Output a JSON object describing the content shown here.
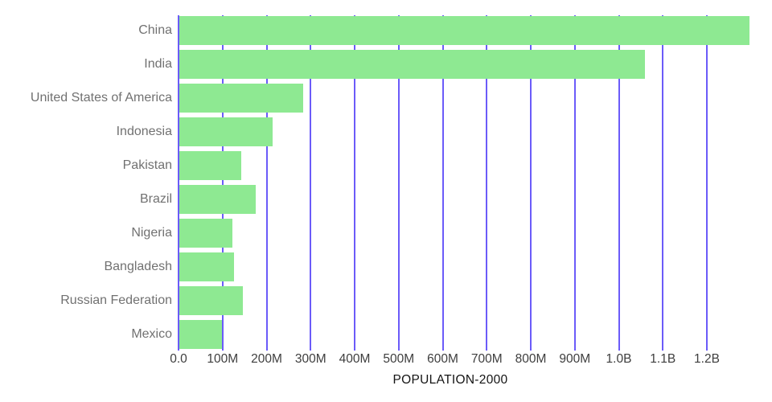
{
  "chart_data": {
    "type": "bar",
    "orientation": "horizontal",
    "title": "",
    "xlabel": "POPULATION-2000",
    "ylabel": "",
    "unit": "persons (millions shown as M, billions as B)",
    "categories": [
      "China",
      "India",
      "United States of America",
      "Indonesia",
      "Pakistan",
      "Brazil",
      "Nigeria",
      "Bangladesh",
      "Russian Federation",
      "Mexico"
    ],
    "values_millions": [
      1295,
      1057,
      281,
      211,
      141,
      173,
      120,
      125,
      145,
      97
    ],
    "x_ticks": [
      {
        "label": "0.0",
        "value_millions": 0
      },
      {
        "label": "100M",
        "value_millions": 100
      },
      {
        "label": "200M",
        "value_millions": 200
      },
      {
        "label": "300M",
        "value_millions": 300
      },
      {
        "label": "400M",
        "value_millions": 400
      },
      {
        "label": "500M",
        "value_millions": 500
      },
      {
        "label": "600M",
        "value_millions": 600
      },
      {
        "label": "700M",
        "value_millions": 700
      },
      {
        "label": "800M",
        "value_millions": 800
      },
      {
        "label": "900M",
        "value_millions": 900
      },
      {
        "label": "1.0B",
        "value_millions": 1000
      },
      {
        "label": "1.1B",
        "value_millions": 1100
      },
      {
        "label": "1.2B",
        "value_millions": 1200
      }
    ],
    "xlim_millions": [
      0,
      1315
    ],
    "grid": "vertical-only",
    "legend": "none",
    "colors": {
      "bar": "#8EE992",
      "gridline": "#6B5BF9",
      "category_label": "#717171",
      "tick_label": "#3E3E3E",
      "axis_title": "#141414",
      "background": "#FFFFFF"
    }
  }
}
